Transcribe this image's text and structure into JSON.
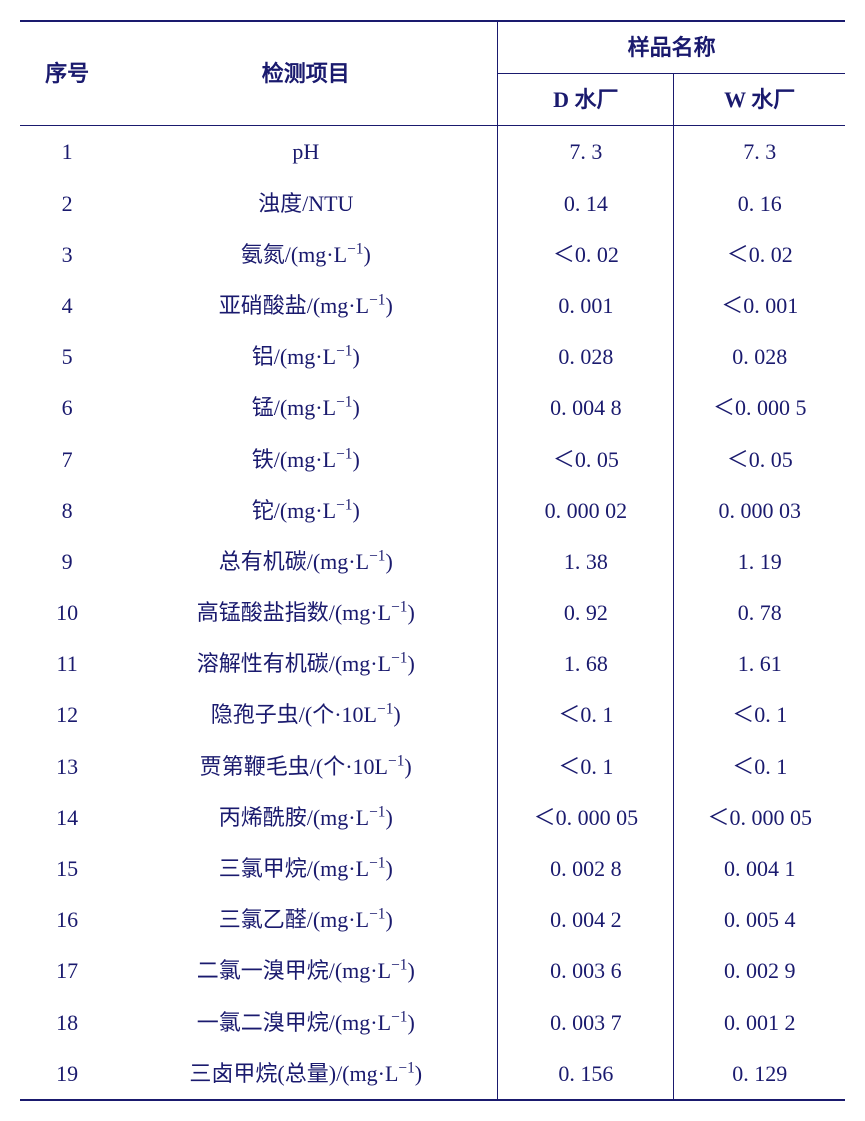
{
  "table": {
    "headers": {
      "seq": "序号",
      "item": "检测项目",
      "sample_group": "样品名称",
      "col_d": "D 水厂",
      "col_w": "W 水厂"
    },
    "unit_mgl": "/(mg·L",
    "unit_10l": "/(个·10L",
    "superscript": "−1",
    "close_paren": ")",
    "rows": [
      {
        "seq": "1",
        "item_plain": "pH",
        "d": "7. 3",
        "w": "7. 3"
      },
      {
        "seq": "2",
        "item_plain": "浊度/NTU",
        "d": "0. 14",
        "w": "0. 16"
      },
      {
        "seq": "3",
        "item_prefix": "氨氮",
        "unit_type": "mgl",
        "d": "＜0. 02",
        "w": "＜0. 02"
      },
      {
        "seq": "4",
        "item_prefix": "亚硝酸盐",
        "unit_type": "mgl",
        "d": "0. 001",
        "w": "＜0. 001"
      },
      {
        "seq": "5",
        "item_prefix": "铝",
        "unit_type": "mgl",
        "d": "0. 028",
        "w": "0. 028"
      },
      {
        "seq": "6",
        "item_prefix": "锰",
        "unit_type": "mgl",
        "d": "0. 004 8",
        "w": "＜0. 000 5"
      },
      {
        "seq": "7",
        "item_prefix": "铁",
        "unit_type": "mgl",
        "d": "＜0. 05",
        "w": "＜0. 05"
      },
      {
        "seq": "8",
        "item_prefix": "铊",
        "unit_type": "mgl",
        "d": "0. 000 02",
        "w": "0. 000 03"
      },
      {
        "seq": "9",
        "item_prefix": "总有机碳",
        "unit_type": "mgl",
        "d": "1. 38",
        "w": "1. 19"
      },
      {
        "seq": "10",
        "item_prefix": "高锰酸盐指数",
        "unit_type": "mgl",
        "d": "0. 92",
        "w": "0. 78"
      },
      {
        "seq": "11",
        "item_prefix": "溶解性有机碳",
        "unit_type": "mgl",
        "d": "1. 68",
        "w": "1. 61"
      },
      {
        "seq": "12",
        "item_prefix": "隐孢子虫",
        "unit_type": "10l",
        "d": "＜0. 1",
        "w": "＜0. 1"
      },
      {
        "seq": "13",
        "item_prefix": "贾第鞭毛虫",
        "unit_type": "10l",
        "d": "＜0. 1",
        "w": "＜0. 1"
      },
      {
        "seq": "14",
        "item_prefix": "丙烯酰胺",
        "unit_type": "mgl",
        "d": "＜0. 000 05",
        "w": "＜0. 000 05"
      },
      {
        "seq": "15",
        "item_prefix": "三氯甲烷",
        "unit_type": "mgl",
        "d": "0. 002 8",
        "w": "0. 004 1"
      },
      {
        "seq": "16",
        "item_prefix": "三氯乙醛",
        "unit_type": "mgl",
        "d": "0. 004 2",
        "w": "0. 005 4"
      },
      {
        "seq": "17",
        "item_prefix": "二氯一溴甲烷",
        "unit_type": "mgl",
        "d": "0. 003 6",
        "w": "0. 002 9"
      },
      {
        "seq": "18",
        "item_prefix": "一氯二溴甲烷",
        "unit_type": "mgl",
        "d": "0. 003 7",
        "w": "0. 001 2"
      },
      {
        "seq": "19",
        "item_prefix": "三卤甲烷(总量)",
        "unit_type": "mgl",
        "d": "0. 156",
        "w": "0. 129"
      }
    ],
    "colors": {
      "text": "#1a1a6e",
      "border": "#1a1a6e",
      "background": "#ffffff"
    },
    "font_size": 22
  }
}
